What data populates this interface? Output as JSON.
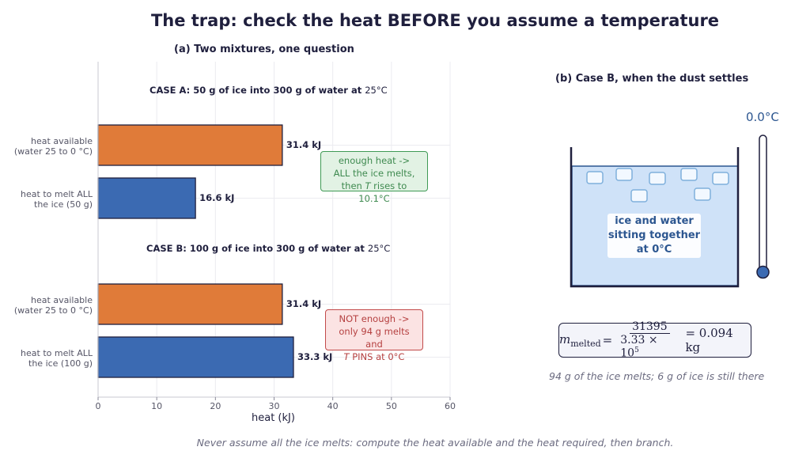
{
  "title": "The trap: check the heat BEFORE you assume a temperature",
  "footer": "Never assume all the ice melts: compute the heat available and the heat required, then branch.",
  "chart_data": [
    {
      "type": "bar",
      "orientation": "horizontal",
      "title": "(a) Two mixtures, one question",
      "xlabel": "heat  (kJ)",
      "xlim": [
        0,
        60
      ],
      "xticks": [
        0,
        10,
        20,
        30,
        40,
        50,
        60
      ],
      "grid": true,
      "groups": [
        {
          "title_bold": "CASE A:  50 g of ice into 300 g of water at ",
          "title_temp": "25°C",
          "bars": [
            {
              "label": "heat available\n(water 25 to 0 °C)",
              "value": 31.4,
              "value_label": "31.4 kJ",
              "color": "#e07b39"
            },
            {
              "label": "heat to melt ALL\nthe ice (50 g)",
              "value": 16.6,
              "value_label": "16.6 kJ",
              "color": "#3b6ab2"
            }
          ],
          "annotation": [
            "enough heat ->",
            "ALL the ice melts,",
            "then T rises to 10.1°C"
          ]
        },
        {
          "title_bold": "CASE B:  100 g of ice into 300 g of water at ",
          "title_temp": "25°C",
          "bars": [
            {
              "label": "heat available\n(water 25 to 0 °C)",
              "value": 31.4,
              "value_label": "31.4 kJ",
              "color": "#e07b39"
            },
            {
              "label": "heat to melt ALL\nthe ice (100 g)",
              "value": 33.3,
              "value_label": "33.3 kJ",
              "color": "#3b6ab2"
            }
          ],
          "annotation": [
            "NOT enough ->",
            "only 94 g melts and",
            "T PINS at 0°C"
          ]
        }
      ]
    },
    {
      "type": "diagram",
      "title": "(b) Case B, when the dust settles",
      "beaker_label": [
        "ice and water",
        "sitting together",
        "at 0°C"
      ],
      "thermometer_reading": "0.0°C",
      "formula": {
        "lhs": "m",
        "lhs_sub": "melted",
        "numerator": "31395",
        "denominator": "3.33 × 10",
        "exponent": "5",
        "result": "= 0.094 kg"
      },
      "note": "94 g of the ice melts; 6 g of ice is still there"
    }
  ]
}
